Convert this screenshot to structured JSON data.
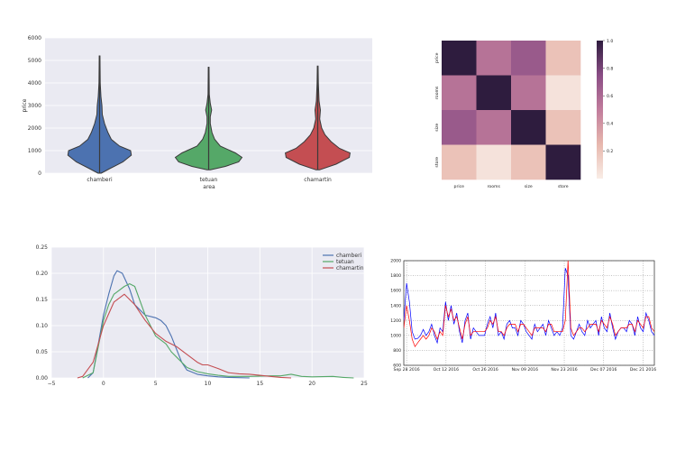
{
  "chart_data": [
    {
      "type": "violin",
      "categories": [
        "chamberi",
        "tetuan",
        "chamartin"
      ],
      "xlabel": "area",
      "ylabel": "price",
      "ylim": [
        0,
        6000
      ],
      "yticks": [
        0,
        1000,
        2000,
        3000,
        4000,
        5000,
        6000
      ],
      "grid": true,
      "colors": [
        "#4c72b0",
        "#55a868",
        "#c44e52"
      ],
      "series": [
        {
          "name": "chamberi",
          "min": 0,
          "max": 5200,
          "profile": [
            [
              0,
              0.05
            ],
            [
              200,
              0.3
            ],
            [
              500,
              0.7
            ],
            [
              800,
              0.95
            ],
            [
              1000,
              0.93
            ],
            [
              1200,
              0.6
            ],
            [
              1500,
              0.35
            ],
            [
              1800,
              0.25
            ],
            [
              2200,
              0.15
            ],
            [
              2600,
              0.08
            ],
            [
              3000,
              0.07
            ],
            [
              3400,
              0.04
            ],
            [
              4000,
              0.02
            ],
            [
              5200,
              0.01
            ]
          ]
        },
        {
          "name": "tetuan",
          "min": 150,
          "max": 4700,
          "profile": [
            [
              150,
              0.05
            ],
            [
              300,
              0.5
            ],
            [
              500,
              0.9
            ],
            [
              700,
              1.0
            ],
            [
              900,
              0.8
            ],
            [
              1200,
              0.35
            ],
            [
              1500,
              0.18
            ],
            [
              1800,
              0.1
            ],
            [
              2200,
              0.05
            ],
            [
              2500,
              0.05
            ],
            [
              2800,
              0.09
            ],
            [
              3100,
              0.05
            ],
            [
              3500,
              0.02
            ],
            [
              4700,
              0.01
            ]
          ]
        },
        {
          "name": "chamartin",
          "min": 150,
          "max": 4750,
          "profile": [
            [
              150,
              0.05
            ],
            [
              400,
              0.55
            ],
            [
              700,
              0.95
            ],
            [
              900,
              0.97
            ],
            [
              1100,
              0.65
            ],
            [
              1400,
              0.4
            ],
            [
              1700,
              0.22
            ],
            [
              2000,
              0.12
            ],
            [
              2400,
              0.06
            ],
            [
              2800,
              0.08
            ],
            [
              3200,
              0.04
            ],
            [
              3600,
              0.03
            ],
            [
              4000,
              0.02
            ],
            [
              4750,
              0.01
            ]
          ]
        }
      ]
    },
    {
      "type": "heatmap",
      "rows": [
        "price",
        "rooms",
        "size",
        "store"
      ],
      "columns": [
        "price",
        "rooms",
        "size",
        "store"
      ],
      "values": [
        [
          1.0,
          0.55,
          0.68,
          0.2
        ],
        [
          0.55,
          1.0,
          0.55,
          0.05
        ],
        [
          0.68,
          0.55,
          1.0,
          0.2
        ],
        [
          0.2,
          0.05,
          0.2,
          1.0
        ]
      ],
      "colorbar_ticks": [
        0.2,
        0.4,
        0.6,
        0.8,
        1.0
      ],
      "colorbar_range": [
        0.0,
        1.0
      ]
    },
    {
      "type": "line",
      "xlim": [
        -5,
        25
      ],
      "ylim": [
        0,
        0.25
      ],
      "xticks": [
        -5,
        0,
        5,
        10,
        15,
        20,
        25
      ],
      "yticks": [
        0.0,
        0.05,
        0.1,
        0.15,
        0.2,
        0.25
      ],
      "legend": "top-right",
      "grid": true,
      "series": [
        {
          "name": "chamberi",
          "color": "#4c72b0",
          "x": [
            -1.5,
            -1,
            0,
            0.5,
            1,
            1.3,
            1.8,
            2.5,
            3,
            4,
            5,
            5.5,
            6,
            6.5,
            7,
            7.5,
            8,
            9,
            10,
            11,
            12,
            13,
            14
          ],
          "y": [
            0,
            0.01,
            0.12,
            0.16,
            0.195,
            0.205,
            0.2,
            0.17,
            0.14,
            0.12,
            0.115,
            0.11,
            0.1,
            0.08,
            0.055,
            0.03,
            0.015,
            0.007,
            0.004,
            0.002,
            0.001,
            0.0005,
            0
          ]
        },
        {
          "name": "tetuan",
          "color": "#55a868",
          "x": [
            -2,
            -1,
            0,
            0.5,
            1,
            2,
            2.5,
            3,
            4,
            5,
            6,
            6.5,
            7,
            8,
            9,
            10,
            11,
            12,
            14,
            16,
            17,
            18,
            19,
            20,
            22,
            23,
            24
          ],
          "y": [
            0,
            0.01,
            0.11,
            0.14,
            0.16,
            0.175,
            0.18,
            0.175,
            0.12,
            0.08,
            0.065,
            0.05,
            0.04,
            0.02,
            0.012,
            0.008,
            0.005,
            0.003,
            0.003,
            0.004,
            0.004,
            0.007,
            0.003,
            0.002,
            0.003,
            0.001,
            0
          ]
        },
        {
          "name": "chamartin",
          "color": "#c44e52",
          "x": [
            -2.5,
            -2,
            -1,
            0,
            1,
            2,
            3,
            4,
            5,
            6,
            7,
            8,
            9,
            9.5,
            10,
            11,
            12,
            13,
            14,
            15,
            16,
            17,
            18
          ],
          "y": [
            0,
            0.003,
            0.03,
            0.1,
            0.145,
            0.16,
            0.14,
            0.11,
            0.085,
            0.07,
            0.06,
            0.045,
            0.03,
            0.025,
            0.025,
            0.018,
            0.01,
            0.008,
            0.007,
            0.005,
            0.003,
            0.001,
            0
          ]
        }
      ]
    },
    {
      "type": "line",
      "xticks": [
        "Sep 28 2016",
        "Oct 12 2016",
        "Oct 26 2016",
        "Nov 09 2016",
        "Nov 23 2016",
        "Dec 07 2016",
        "Dec 21 2016"
      ],
      "yticks": [
        600,
        800,
        1000,
        1200,
        1400,
        1600,
        1800,
        2000
      ],
      "ylim": [
        600,
        2000
      ],
      "x_start": "2016-09-27",
      "x_end": "2016-12-25",
      "grid": true,
      "series": [
        {
          "color": "#0000ff",
          "y": [
            1200,
            1700,
            1450,
            1050,
            950,
            960,
            1000,
            1080,
            1000,
            1050,
            1150,
            1000,
            900,
            1100,
            1050,
            1450,
            1200,
            1400,
            1150,
            1300,
            1050,
            900,
            1200,
            1300,
            950,
            1100,
            1050,
            1000,
            1000,
            1000,
            1150,
            1250,
            1100,
            1300,
            1000,
            1050,
            950,
            1150,
            1200,
            1100,
            1100,
            1000,
            1200,
            1150,
            1050,
            1000,
            950,
            1150,
            1050,
            1100,
            1150,
            1000,
            1200,
            1100,
            1000,
            1050,
            1000,
            1100,
            1900,
            1800,
            1000,
            950,
            1050,
            1150,
            1050,
            1000,
            1200,
            1100,
            1150,
            1200,
            1000,
            1250,
            1100,
            1050,
            1300,
            1100,
            950,
            1050,
            1100,
            1100,
            1050,
            1200,
            1150,
            1000,
            1250,
            1100,
            1050,
            1300,
            1200,
            1050,
            1000
          ]
        },
        {
          "color": "#ff0000",
          "y": [
            1100,
            1400,
            1200,
            950,
            850,
            900,
            950,
            1000,
            950,
            1000,
            1100,
            1050,
            950,
            1050,
            1000,
            1400,
            1250,
            1350,
            1200,
            1250,
            1100,
            950,
            1150,
            1250,
            1000,
            1050,
            1050,
            1050,
            1050,
            1050,
            1100,
            1200,
            1150,
            1250,
            1050,
            1050,
            1000,
            1100,
            1150,
            1150,
            1150,
            1050,
            1150,
            1150,
            1100,
            1050,
            1000,
            1100,
            1100,
            1100,
            1100,
            1050,
            1150,
            1150,
            1050,
            1050,
            1050,
            1050,
            1200,
            2000,
            1100,
            1000,
            1050,
            1100,
            1100,
            1050,
            1100,
            1150,
            1150,
            1150,
            1050,
            1200,
            1150,
            1100,
            1250,
            1150,
            1000,
            1050,
            1100,
            1100,
            1100,
            1150,
            1150,
            1050,
            1200,
            1150,
            1100,
            1250,
            1250,
            1100,
            1050
          ]
        }
      ]
    }
  ]
}
